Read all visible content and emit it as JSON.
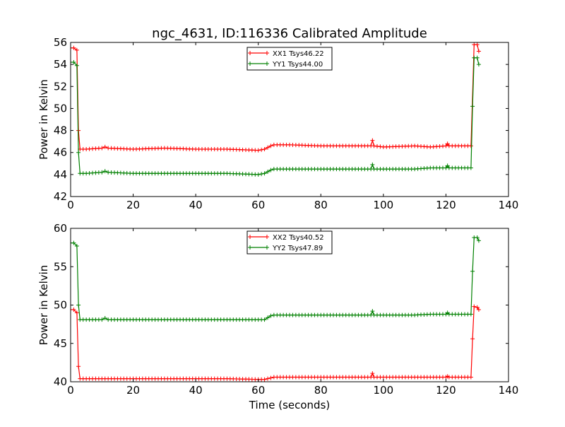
{
  "chart_data": [
    {
      "type": "line",
      "title": "ngc_4631, ID:116336 Calibrated Amplitude",
      "xlabel": "",
      "ylabel": "Power in Kelvin",
      "xlim": [
        0,
        140
      ],
      "ylim": [
        42,
        56
      ],
      "xticks": [
        0,
        20,
        40,
        60,
        80,
        100,
        120,
        140
      ],
      "yticks": [
        42,
        44,
        46,
        48,
        50,
        52,
        54,
        56
      ],
      "legend_position": "top-center",
      "grid": false,
      "series": [
        {
          "name": "XX1 Tsys46.22",
          "color": "#ff0000",
          "marker": "+",
          "points": [
            [
              0,
              55.5
            ],
            [
              1,
              55.5
            ],
            [
              2,
              55.3
            ],
            [
              2.5,
              48
            ],
            [
              3,
              46.3
            ],
            [
              5,
              46.3
            ],
            [
              10,
              46.4
            ],
            [
              11,
              46.5
            ],
            [
              12,
              46.4
            ],
            [
              20,
              46.3
            ],
            [
              30,
              46.4
            ],
            [
              40,
              46.3
            ],
            [
              50,
              46.3
            ],
            [
              60,
              46.2
            ],
            [
              62,
              46.3
            ],
            [
              64,
              46.6
            ],
            [
              65,
              46.7
            ],
            [
              70,
              46.7
            ],
            [
              80,
              46.6
            ],
            [
              90,
              46.6
            ],
            [
              96,
              46.6
            ],
            [
              96.5,
              47.1
            ],
            [
              97,
              46.6
            ],
            [
              100,
              46.5
            ],
            [
              110,
              46.6
            ],
            [
              115,
              46.5
            ],
            [
              120,
              46.6
            ],
            [
              120.5,
              46.8
            ],
            [
              121,
              46.6
            ],
            [
              128,
              46.6
            ],
            [
              129,
              55.8
            ],
            [
              130,
              55.8
            ],
            [
              130.5,
              55.2
            ]
          ]
        },
        {
          "name": "YY1 Tsys44.00",
          "color": "#008000",
          "marker": "+",
          "points": [
            [
              0,
              54.2
            ],
            [
              1,
              54.2
            ],
            [
              2,
              53.9
            ],
            [
              2.5,
              46
            ],
            [
              3,
              44.1
            ],
            [
              5,
              44.1
            ],
            [
              10,
              44.2
            ],
            [
              11,
              44.3
            ],
            [
              12,
              44.2
            ],
            [
              20,
              44.1
            ],
            [
              30,
              44.1
            ],
            [
              40,
              44.1
            ],
            [
              50,
              44.1
            ],
            [
              60,
              44.0
            ],
            [
              62,
              44.1
            ],
            [
              64,
              44.4
            ],
            [
              65,
              44.5
            ],
            [
              70,
              44.5
            ],
            [
              80,
              44.5
            ],
            [
              90,
              44.5
            ],
            [
              96,
              44.5
            ],
            [
              96.5,
              44.9
            ],
            [
              97,
              44.5
            ],
            [
              100,
              44.5
            ],
            [
              110,
              44.5
            ],
            [
              115,
              44.6
            ],
            [
              120,
              44.6
            ],
            [
              120.5,
              44.8
            ],
            [
              121,
              44.6
            ],
            [
              128,
              44.6
            ],
            [
              128.5,
              50.2
            ],
            [
              129,
              54.6
            ],
            [
              130,
              54.6
            ],
            [
              130.5,
              54.0
            ]
          ]
        }
      ]
    },
    {
      "type": "line",
      "title": "",
      "xlabel": "Time (seconds)",
      "ylabel": "Power in Kelvin",
      "xlim": [
        0,
        140
      ],
      "ylim": [
        40,
        60
      ],
      "xticks": [
        0,
        20,
        40,
        60,
        80,
        100,
        120,
        140
      ],
      "yticks": [
        40,
        45,
        50,
        55,
        60
      ],
      "legend_position": "top-center",
      "grid": false,
      "series": [
        {
          "name": "XX2 Tsys40.52",
          "color": "#ff0000",
          "marker": "+",
          "points": [
            [
              0,
              49.4
            ],
            [
              1,
              49.4
            ],
            [
              2,
              49.0
            ],
            [
              2.5,
              42
            ],
            [
              3,
              40.4
            ],
            [
              5,
              40.4
            ],
            [
              10,
              40.4
            ],
            [
              20,
              40.4
            ],
            [
              30,
              40.4
            ],
            [
              40,
              40.4
            ],
            [
              50,
              40.4
            ],
            [
              60,
              40.3
            ],
            [
              62,
              40.3
            ],
            [
              64,
              40.5
            ],
            [
              65,
              40.6
            ],
            [
              70,
              40.6
            ],
            [
              80,
              40.6
            ],
            [
              90,
              40.6
            ],
            [
              96,
              40.6
            ],
            [
              96.5,
              41.1
            ],
            [
              97,
              40.6
            ],
            [
              100,
              40.6
            ],
            [
              110,
              40.6
            ],
            [
              120,
              40.6
            ],
            [
              120.5,
              40.7
            ],
            [
              121,
              40.6
            ],
            [
              128,
              40.6
            ],
            [
              128.5,
              45.6
            ],
            [
              129,
              49.8
            ],
            [
              130,
              49.7
            ],
            [
              130.5,
              49.4
            ]
          ]
        },
        {
          "name": "YY2 Tsys47.89",
          "color": "#008000",
          "marker": "+",
          "points": [
            [
              0,
              58.1
            ],
            [
              1,
              58.1
            ],
            [
              2,
              57.7
            ],
            [
              2.5,
              50
            ],
            [
              3,
              48.1
            ],
            [
              5,
              48.1
            ],
            [
              10,
              48.1
            ],
            [
              11,
              48.3
            ],
            [
              12,
              48.1
            ],
            [
              20,
              48.1
            ],
            [
              30,
              48.1
            ],
            [
              40,
              48.1
            ],
            [
              50,
              48.1
            ],
            [
              60,
              48.1
            ],
            [
              62,
              48.1
            ],
            [
              64,
              48.6
            ],
            [
              65,
              48.7
            ],
            [
              70,
              48.7
            ],
            [
              80,
              48.7
            ],
            [
              90,
              48.7
            ],
            [
              96,
              48.7
            ],
            [
              96.5,
              49.2
            ],
            [
              97,
              48.7
            ],
            [
              100,
              48.7
            ],
            [
              110,
              48.7
            ],
            [
              115,
              48.8
            ],
            [
              120,
              48.8
            ],
            [
              120.5,
              49.0
            ],
            [
              121,
              48.8
            ],
            [
              128,
              48.8
            ],
            [
              128.5,
              54.4
            ],
            [
              129,
              58.8
            ],
            [
              130,
              58.8
            ],
            [
              130.5,
              58.4
            ]
          ]
        }
      ]
    }
  ]
}
